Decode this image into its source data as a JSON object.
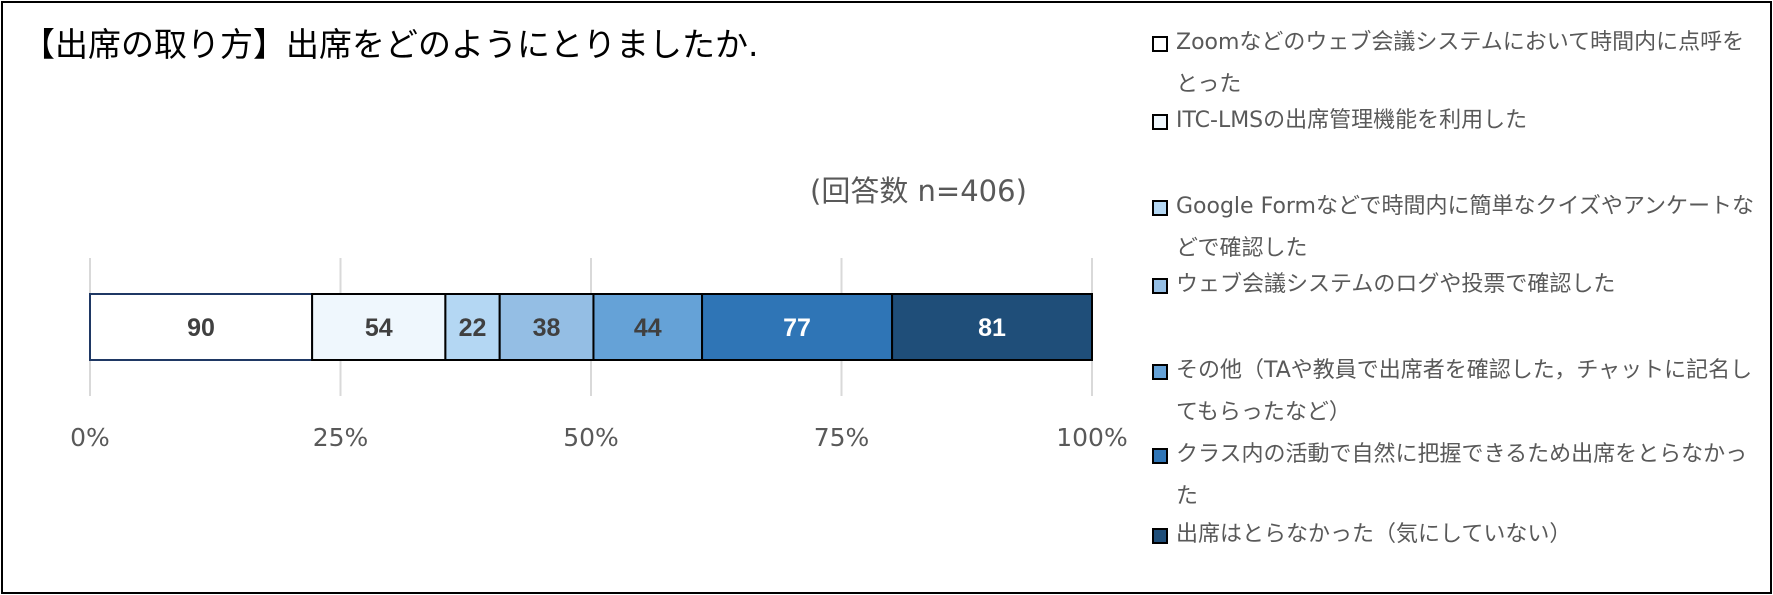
{
  "chart_data": {
    "type": "bar",
    "orientation": "horizontal",
    "stacked": "percent",
    "title": "【出席の取り方】出席をどのようにとりましたか.",
    "annotation": "(回答数 n=406)",
    "xlim": [
      0,
      100
    ],
    "x_ticks": [
      "0%",
      "25%",
      "50%",
      "75%",
      "100%"
    ],
    "grid": true,
    "legend_position": "right",
    "series": [
      {
        "name": "Zoomなどのウェブ会議システムにおいて時間内に点呼をとった",
        "value": 90,
        "color": "#ffffff",
        "label_color": "#404040"
      },
      {
        "name": "ITC-LMSの出席管理機能を利用した",
        "value": 54,
        "color": "#eff7fd",
        "label_color": "#404040"
      },
      {
        "name": "Google Formなどで時間内に簡単なクイズやアンケートなどで確認した",
        "value": 22,
        "color": "#b4d7f3",
        "label_color": "#404040"
      },
      {
        "name": "ウェブ会議システムのログや投票で確認した",
        "value": 38,
        "color": "#94bee4",
        "label_color": "#404040"
      },
      {
        "name": "その他（TAや教員で出席者を確認した，チャットに記名してもらったなど）",
        "value": 44,
        "color": "#65a2d7",
        "label_color": "#404040"
      },
      {
        "name": "クラス内の活動で自然に把握できるため出席をとらなかった",
        "value": 77,
        "color": "#2f75b6",
        "label_color": "#ffffff"
      },
      {
        "name": "出席はとらなかった（気にしていない）",
        "value": 81,
        "color": "#1f4e79",
        "label_color": "#ffffff"
      }
    ]
  }
}
